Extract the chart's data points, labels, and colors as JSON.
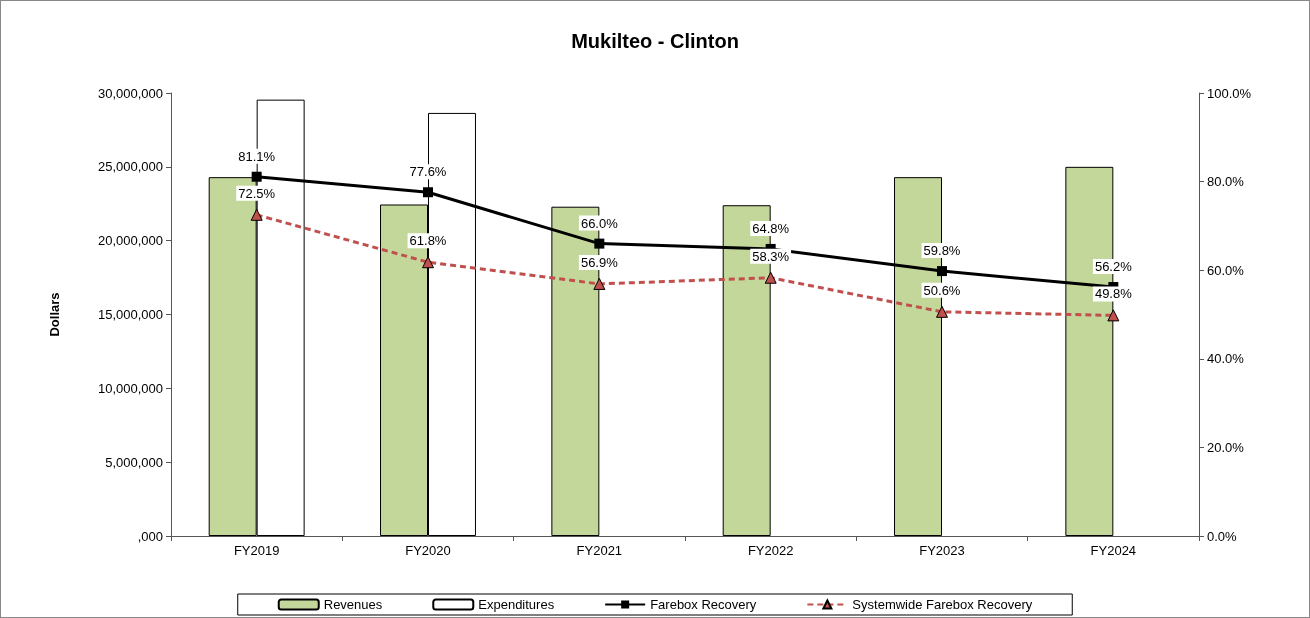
{
  "chart_data": {
    "type": "bar",
    "title": "Mukilteo - Clinton",
    "ylabel": "Dollars",
    "categories": [
      "FY2019",
      "FY2020",
      "FY2021",
      "FY2022",
      "FY2023",
      "FY2024"
    ],
    "series": [
      {
        "name": "Revenues",
        "color": "#c4d79b",
        "values": [
          24300000,
          22450000,
          22300000,
          22400000,
          24300000,
          25000000
        ]
      },
      {
        "name": "Expenditures",
        "color": "#ffffff",
        "values": [
          29550000,
          28650000,
          null,
          null,
          null,
          null
        ]
      },
      {
        "name": "Farebox Recovery",
        "type": "line",
        "axis": "y2",
        "color": "#000000",
        "marker": "square",
        "line_style": "solid",
        "values": [
          81.1,
          77.6,
          66.0,
          64.8,
          59.8,
          56.2
        ],
        "value_labels": [
          "81.1%",
          "77.6%",
          "66.0%",
          "64.8%",
          "59.8%",
          "56.2%"
        ]
      },
      {
        "name": "Systemwide Farebox Recovery",
        "type": "line",
        "axis": "y2",
        "color": "#c0504d",
        "marker": "triangle",
        "line_style": "dashed",
        "values": [
          72.5,
          61.8,
          56.9,
          58.3,
          50.6,
          49.8
        ],
        "value_labels": [
          "72.5%",
          "61.8%",
          "56.9%",
          "58.3%",
          "50.6%",
          "49.8%"
        ]
      }
    ],
    "ylim": [
      0,
      30000000
    ],
    "yticks": [
      {
        "value": 0,
        "label": ",000"
      },
      {
        "value": 5000000,
        "label": "5,000,000"
      },
      {
        "value": 10000000,
        "label": "10,000,000"
      },
      {
        "value": 15000000,
        "label": "15,000,000"
      },
      {
        "value": 20000000,
        "label": "20,000,000"
      },
      {
        "value": 25000000,
        "label": "25,000,000"
      },
      {
        "value": 30000000,
        "label": "30,000,000"
      }
    ],
    "y2lim": [
      0,
      100
    ],
    "y2ticks": [
      {
        "value": 0,
        "label": "0.0%"
      },
      {
        "value": 20,
        "label": "20.0%"
      },
      {
        "value": 40,
        "label": "40.0%"
      },
      {
        "value": 60,
        "label": "60.0%"
      },
      {
        "value": 80,
        "label": "80.0%"
      },
      {
        "value": 100,
        "label": "100.0%"
      }
    ],
    "grid": false,
    "legend": "bottom"
  }
}
